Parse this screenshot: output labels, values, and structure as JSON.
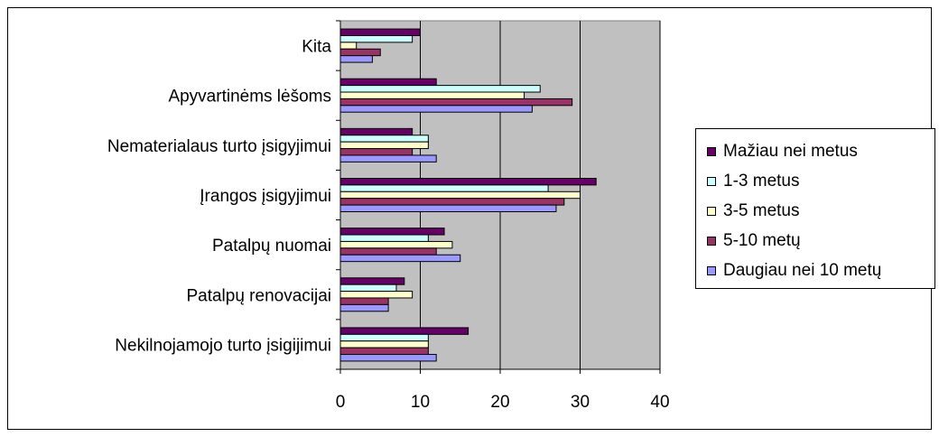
{
  "chart_data": {
    "type": "bar",
    "orientation": "horizontal",
    "title": "",
    "xlabel": "",
    "ylabel": "",
    "xlim": [
      0,
      40
    ],
    "xticks": [
      "0",
      "10",
      "20",
      "30",
      "40"
    ],
    "grid": true,
    "plot_background": "#c0c0c0",
    "legend_position": "right",
    "categories": [
      "Kita",
      "Apyvartinėms lėšoms",
      "Nematerialaus turto įsigyjimui",
      "Įrangos įsigyjimui",
      "Patalpų nuomai",
      "Patalpų renovacijai",
      "Nekilnojamojo turto įsigijimui"
    ],
    "series": [
      {
        "name": "Mažiau nei metus",
        "color": "#660066",
        "values": [
          10,
          12,
          9,
          32,
          13,
          8,
          16
        ]
      },
      {
        "name": "1-3 metus",
        "color": "#ccffff",
        "values": [
          9,
          25,
          11,
          26,
          11,
          7,
          11
        ]
      },
      {
        "name": "3-5 metus",
        "color": "#ffffcc",
        "values": [
          2,
          23,
          11,
          30,
          14,
          9,
          11
        ]
      },
      {
        "name": "5-10 metų",
        "color": "#993366",
        "values": [
          5,
          29,
          9,
          28,
          12,
          6,
          11
        ]
      },
      {
        "name": "Daugiau nei 10 metų",
        "color": "#9999ff",
        "values": [
          4,
          24,
          12,
          27,
          15,
          6,
          12
        ]
      }
    ]
  }
}
